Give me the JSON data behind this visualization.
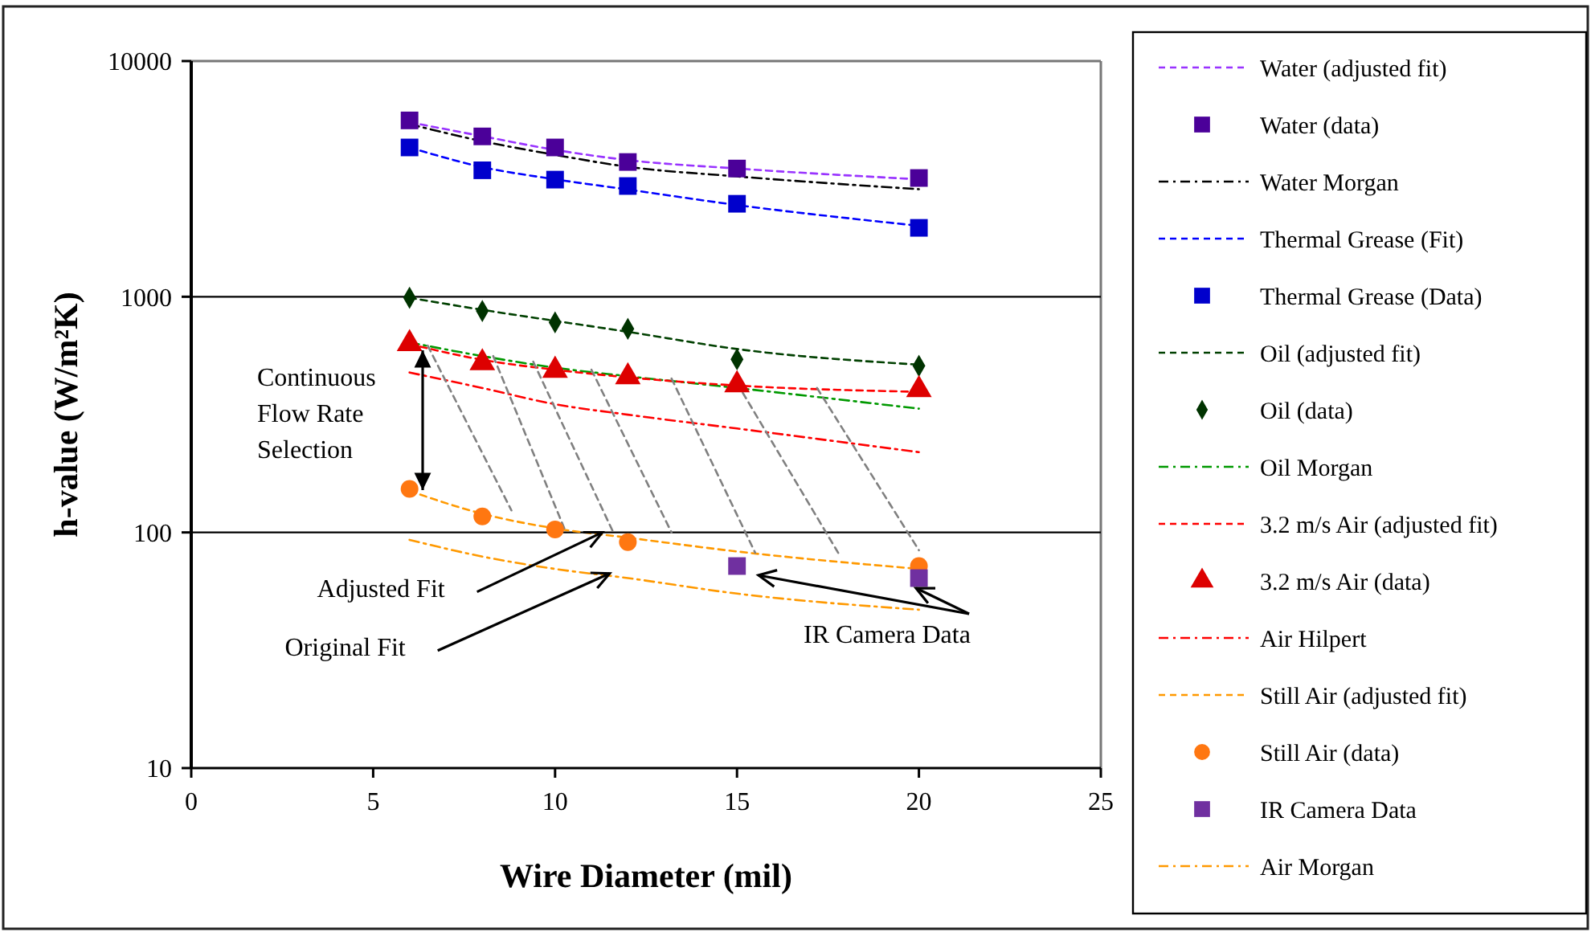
{
  "chart_data": {
    "type": "line",
    "xlabel": "Wire Diameter (mil)",
    "ylabel": "h-value (W/m²K)",
    "xlim": [
      0,
      25
    ],
    "xticks": [
      0,
      5,
      10,
      15,
      20,
      25
    ],
    "ylim": [
      10,
      10000
    ],
    "yticks": [
      10,
      100,
      1000,
      10000
    ],
    "log": "y",
    "grid": "y",
    "legend": "right",
    "series": [
      {
        "name": "Water (adjusted fit)",
        "color": "#9933ff",
        "line_style": "dashed",
        "marker": "none",
        "x": [
          6,
          8,
          10,
          12,
          15,
          20
        ],
        "values": [
          5500,
          4800,
          4200,
          3800,
          3500,
          3150
        ]
      },
      {
        "name": "Water (data)",
        "type": "scatter",
        "color": "#4b0099",
        "marker": "square",
        "x": [
          6,
          8,
          10,
          12,
          15,
          20
        ],
        "values": [
          5600,
          4790,
          4300,
          3730,
          3500,
          3190
        ]
      },
      {
        "name": "Water Morgan",
        "color": "#000000",
        "line_style": "dashdot",
        "marker": "none",
        "x": [
          6,
          8,
          10,
          12,
          15,
          20
        ],
        "values": [
          5400,
          4570,
          4000,
          3560,
          3240,
          2860
        ]
      },
      {
        "name": "Thermal Grease (Fit)",
        "color": "#0000ff",
        "line_style": "dashed",
        "marker": "none",
        "x": [
          6,
          8,
          10,
          12,
          15,
          20
        ],
        "values": [
          4300,
          3550,
          3150,
          2850,
          2450,
          2000
        ]
      },
      {
        "name": "Thermal Grease (Data)",
        "type": "scatter",
        "color": "#0000cc",
        "marker": "square",
        "x": [
          6,
          8,
          10,
          12,
          15,
          20
        ],
        "values": [
          4300,
          3440,
          3140,
          2950,
          2480,
          1960
        ]
      },
      {
        "name": "Oil (adjusted fit)",
        "color": "#004000",
        "line_style": "dashed",
        "marker": "none",
        "x": [
          6,
          8,
          10,
          12,
          15,
          20
        ],
        "values": [
          990,
          880,
          790,
          710,
          600,
          515
        ]
      },
      {
        "name": "Oil (data)",
        "type": "scatter",
        "color": "#003300",
        "marker": "diamond",
        "x": [
          6,
          8,
          10,
          12,
          15,
          20
        ],
        "values": [
          990,
          870,
          778,
          731,
          543,
          509
        ]
      },
      {
        "name": "Oil Morgan",
        "color": "#009900",
        "line_style": "dashdot",
        "marker": "none",
        "x": [
          6,
          8,
          10,
          12,
          15,
          20
        ],
        "values": [
          640,
          560,
          500,
          460,
          410,
          335
        ]
      },
      {
        "name": "3.2 m/s Air (adjusted fit)",
        "color": "#ff0000",
        "line_style": "dashed",
        "marker": "none",
        "x": [
          6,
          8,
          10,
          12,
          15,
          20
        ],
        "values": [
          630,
          540,
          490,
          455,
          420,
          395
        ]
      },
      {
        "name": "3.2 m/s Air (data)",
        "type": "scatter",
        "color": "#dd0000",
        "marker": "triangle",
        "x": [
          6,
          8,
          10,
          12,
          15,
          20
        ],
        "values": [
          632,
          524,
          487,
          457,
          423,
          403
        ]
      },
      {
        "name": "Air Hilpert",
        "color": "#ff0000",
        "line_style": "dashdot",
        "marker": "none",
        "x": [
          6,
          8,
          10,
          12,
          15,
          20
        ],
        "values": [
          477,
          410,
          350,
          316,
          276,
          219
        ]
      },
      {
        "name": "Still Air (adjusted fit)",
        "color": "#ff9900",
        "line_style": "dashed",
        "marker": "none",
        "x": [
          6,
          8,
          10,
          12,
          15,
          20
        ],
        "values": [
          150,
          120,
          104,
          95,
          83,
          70
        ]
      },
      {
        "name": "Still Air (data)",
        "type": "scatter",
        "color": "#ff7711",
        "marker": "circle",
        "x": [
          6,
          8,
          10,
          12,
          20
        ],
        "values": [
          153,
          117,
          103,
          91,
          72
        ]
      },
      {
        "name": "IR Camera Data",
        "type": "scatter",
        "color": "#7030a0",
        "marker": "square",
        "x": [
          15,
          20
        ],
        "values": [
          72,
          64
        ]
      },
      {
        "name": "Air Morgan",
        "color": "#ff9900",
        "line_style": "dashdot",
        "marker": "none",
        "x": [
          6,
          8,
          10,
          12,
          15,
          20
        ],
        "values": [
          93,
          79,
          70,
          64,
          55,
          47
        ]
      },
      {
        "color": "#808080",
        "line_style": "dashed",
        "marker": "none",
        "x": [
          6.5,
          8.8
        ],
        "values": [
          620,
          124
        ]
      },
      {
        "color": "#808080",
        "line_style": "dashed",
        "marker": "none",
        "x": [
          8.3,
          10.3
        ],
        "values": [
          560,
          100
        ]
      },
      {
        "color": "#808080",
        "line_style": "dashed",
        "marker": "none",
        "x": [
          9.4,
          11.6
        ],
        "values": [
          530,
          100
        ]
      },
      {
        "color": "#808080",
        "line_style": "dashed",
        "marker": "none",
        "x": [
          11,
          13.2
        ],
        "values": [
          490,
          100
        ]
      },
      {
        "color": "#808080",
        "line_style": "dashed",
        "marker": "none",
        "x": [
          13.2,
          15.5
        ],
        "values": [
          450,
          82
        ]
      },
      {
        "color": "#808080",
        "line_style": "dashed",
        "marker": "none",
        "x": [
          15,
          17.8
        ],
        "values": [
          430,
          81
        ]
      },
      {
        "color": "#808080",
        "line_style": "dashed",
        "marker": "none",
        "x": [
          17.2,
          20
        ],
        "values": [
          410,
          84
        ]
      }
    ],
    "annotations": [
      "Continuous Flow Rate Selection",
      {
        "text": "Adjusted Fit",
        "x": 11.3,
        "y": 100
      },
      {
        "text": "Original Fit",
        "x": 11.5,
        "y": 67
      },
      "IR Camera Data"
    ]
  }
}
